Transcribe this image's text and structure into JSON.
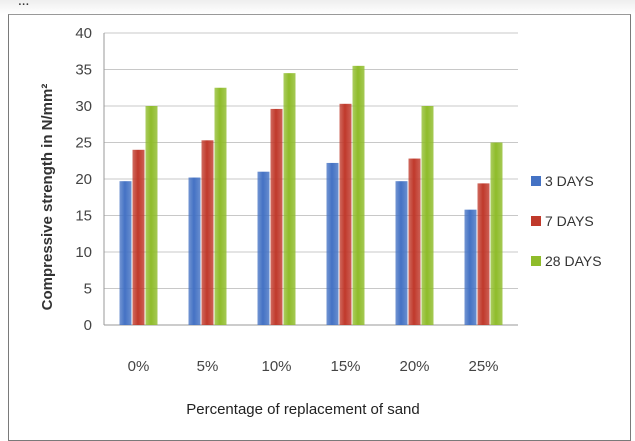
{
  "caption_fragment": "...",
  "chart_data": {
    "type": "bar",
    "title": "",
    "xlabel": "Percentage of replacement of sand",
    "ylabel": "Compressive strength in N/mm²",
    "ylim": [
      0,
      40
    ],
    "yticks": [
      "0",
      "5",
      "10",
      "15",
      "20",
      "25",
      "30",
      "35",
      "40"
    ],
    "categories": [
      "0%",
      "5%",
      "10%",
      "15%",
      "20%",
      "25%"
    ],
    "grid": true,
    "legend_position": "right",
    "series": [
      {
        "name": "3 DAYS",
        "color": "#4472c4",
        "values": [
          19.7,
          20.2,
          21.0,
          22.2,
          19.7,
          15.8
        ]
      },
      {
        "name": "7 DAYS",
        "color": "#c0392b",
        "values": [
          24.0,
          25.3,
          29.6,
          30.3,
          22.8,
          19.4
        ]
      },
      {
        "name": "28 DAYS",
        "color": "#8fbc2a",
        "values": [
          30.0,
          32.5,
          34.5,
          35.5,
          30.0,
          25.0
        ]
      }
    ]
  }
}
